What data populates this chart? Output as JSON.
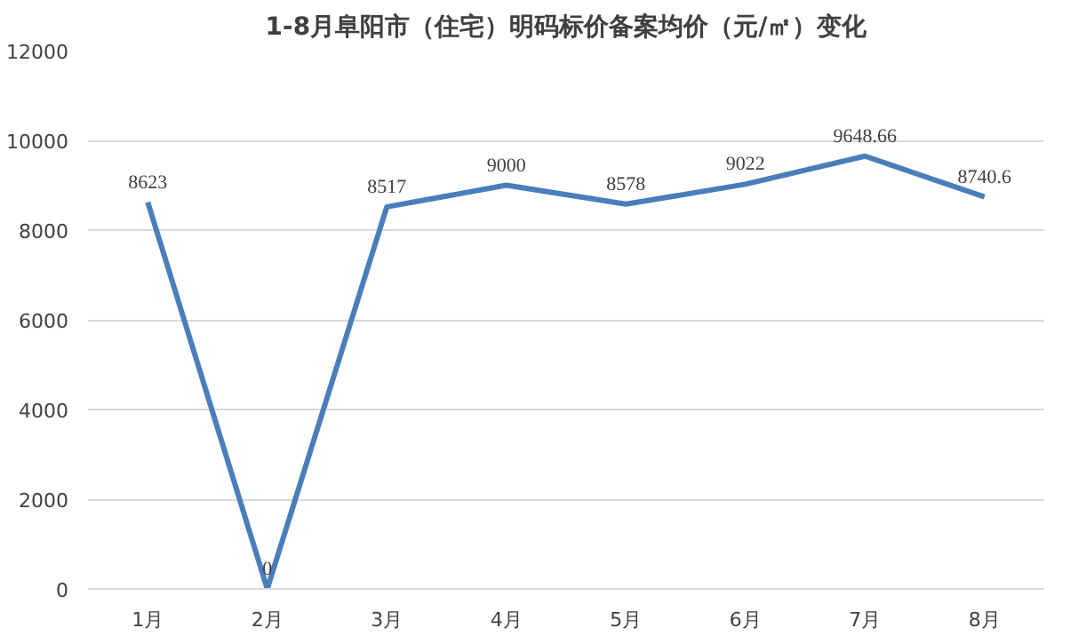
{
  "chart_data": {
    "type": "line",
    "title": "1-8月阜阳市（住宅）明码标价备案均价（元/㎡）变化",
    "categories": [
      "1月",
      "2月",
      "3月",
      "4月",
      "5月",
      "6月",
      "7月",
      "8月"
    ],
    "series": [
      {
        "color": "#4a7ebb",
        "values": [
          8623,
          0,
          8517,
          9000,
          8578,
          9022,
          9648.66,
          8740.6
        ]
      }
    ],
    "ylim": [
      0,
      12000
    ],
    "yticks": [
      0,
      2000,
      4000,
      6000,
      8000,
      10000,
      12000
    ],
    "grid": "y",
    "data_labels": true,
    "marker": "none",
    "line_style": "solid"
  }
}
